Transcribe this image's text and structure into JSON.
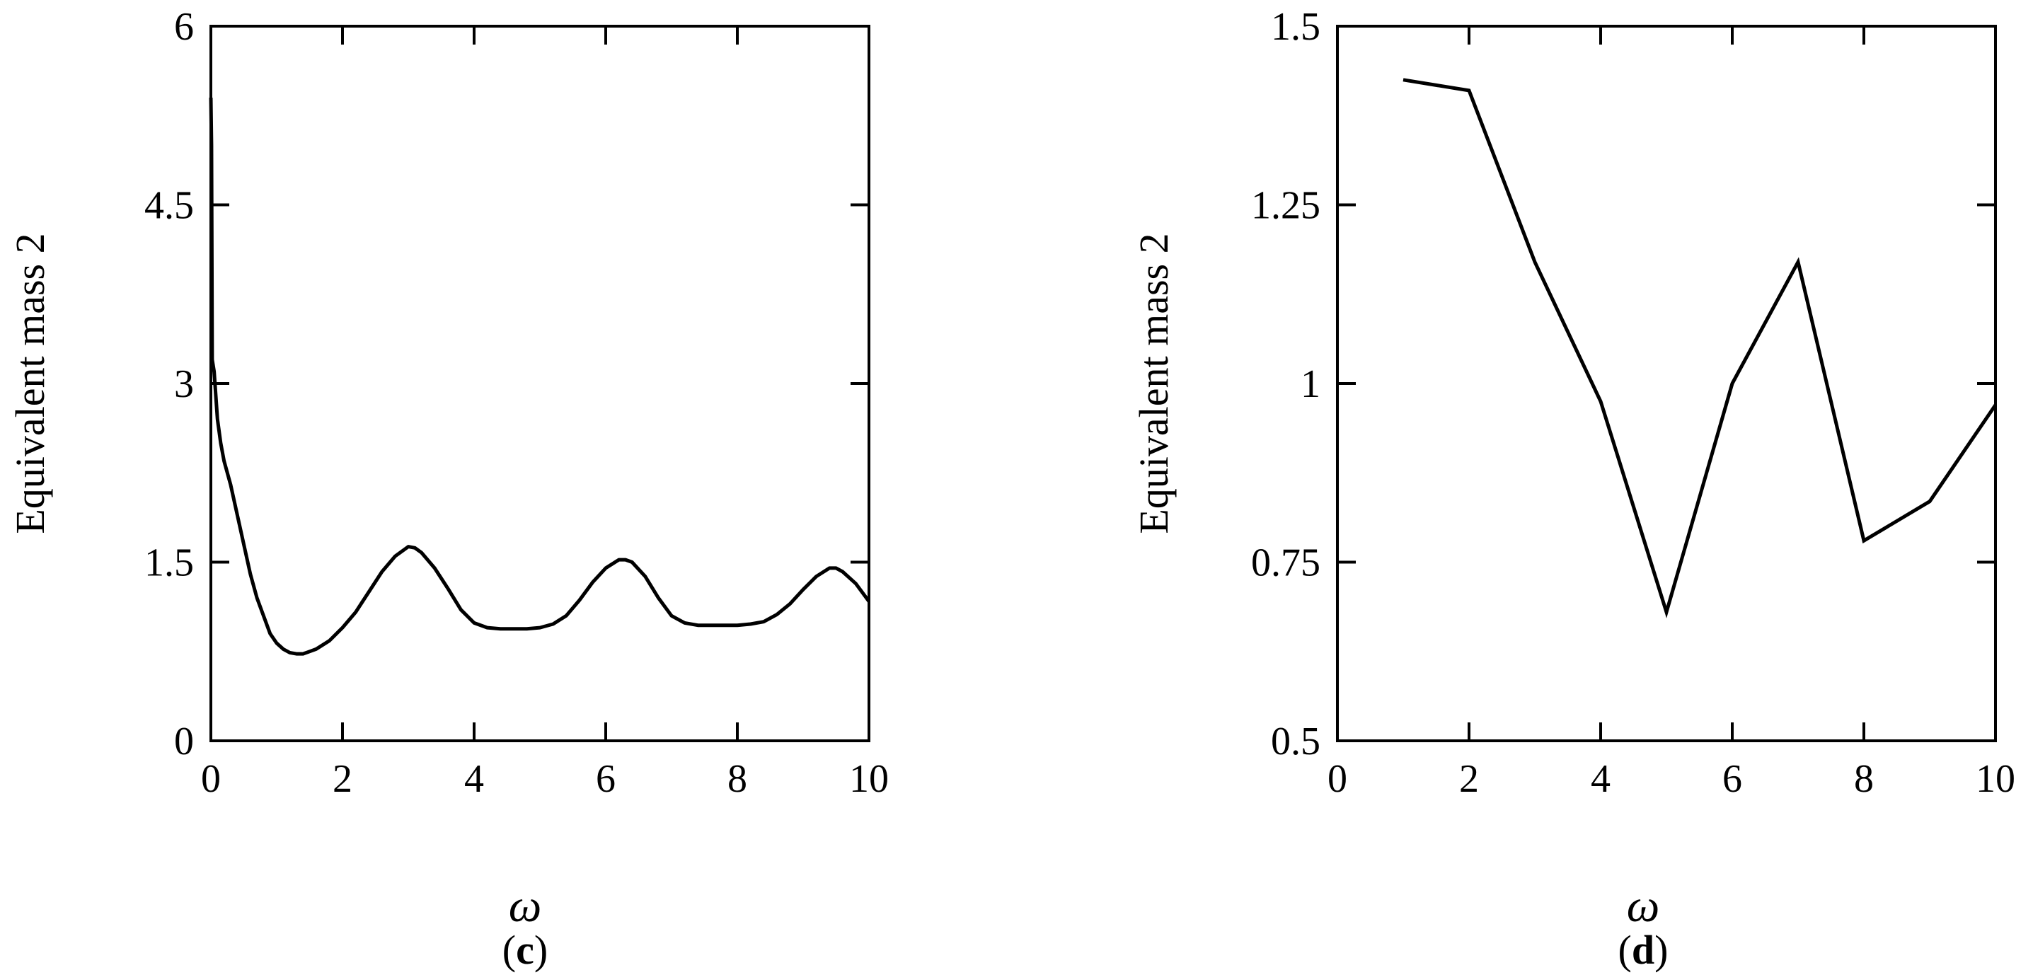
{
  "chart_data": [
    {
      "type": "line",
      "panel_label": "(c)",
      "panel_letter": "c",
      "xlabel": "ω",
      "ylabel": "Equivalent mass 2",
      "xlim": [
        0,
        10
      ],
      "ylim": [
        0,
        6
      ],
      "x_ticks": [
        "0",
        "2",
        "4",
        "6",
        "8",
        "10"
      ],
      "y_ticks": [
        "0",
        "1.5",
        "3",
        "4.5",
        "6"
      ],
      "grid": false,
      "series": [
        {
          "x": [
            0.0,
            0.01,
            0.02,
            0.05,
            0.1,
            0.15,
            0.2,
            0.3,
            0.4,
            0.5,
            0.6,
            0.7,
            0.8,
            0.9,
            1.0,
            1.1,
            1.2,
            1.3,
            1.4,
            1.5,
            1.6,
            1.8,
            2.0,
            2.2,
            2.4,
            2.6,
            2.8,
            3.0,
            3.1,
            3.2,
            3.4,
            3.6,
            3.8,
            4.0,
            4.2,
            4.4,
            4.6,
            4.8,
            5.0,
            5.2,
            5.4,
            5.6,
            5.8,
            6.0,
            6.2,
            6.3,
            6.4,
            6.6,
            6.8,
            7.0,
            7.2,
            7.4,
            7.6,
            7.8,
            8.0,
            8.2,
            8.4,
            8.6,
            8.8,
            9.0,
            9.2,
            9.4,
            9.5,
            9.6,
            9.8,
            10.0
          ],
          "y": [
            5.4,
            5.0,
            3.2,
            3.1,
            2.7,
            2.5,
            2.35,
            2.15,
            1.9,
            1.65,
            1.4,
            1.2,
            1.05,
            0.9,
            0.82,
            0.77,
            0.74,
            0.73,
            0.73,
            0.75,
            0.77,
            0.84,
            0.95,
            1.08,
            1.25,
            1.42,
            1.55,
            1.63,
            1.62,
            1.58,
            1.45,
            1.28,
            1.1,
            0.99,
            0.95,
            0.94,
            0.94,
            0.94,
            0.95,
            0.98,
            1.05,
            1.18,
            1.33,
            1.45,
            1.52,
            1.52,
            1.5,
            1.38,
            1.2,
            1.05,
            0.99,
            0.97,
            0.97,
            0.97,
            0.97,
            0.98,
            1.0,
            1.06,
            1.15,
            1.27,
            1.38,
            1.45,
            1.45,
            1.42,
            1.32,
            1.17
          ]
        }
      ]
    },
    {
      "type": "line",
      "panel_label": "(d)",
      "panel_letter": "d",
      "xlabel": "ω",
      "ylabel": "Equivalent mass 2",
      "xlim": [
        0,
        10
      ],
      "ylim": [
        0.5,
        1.5
      ],
      "x_ticks": [
        "0",
        "2",
        "4",
        "6",
        "8",
        "10"
      ],
      "y_ticks": [
        "0.5",
        "0.75",
        "1",
        "1.25",
        "1.5"
      ],
      "grid": false,
      "series": [
        {
          "x": [
            1,
            2,
            3,
            4,
            5,
            6,
            7,
            8,
            9,
            10
          ],
          "y": [
            1.425,
            1.41,
            1.17,
            0.975,
            0.68,
            1.0,
            1.17,
            0.78,
            0.835,
            0.97
          ]
        }
      ]
    }
  ]
}
